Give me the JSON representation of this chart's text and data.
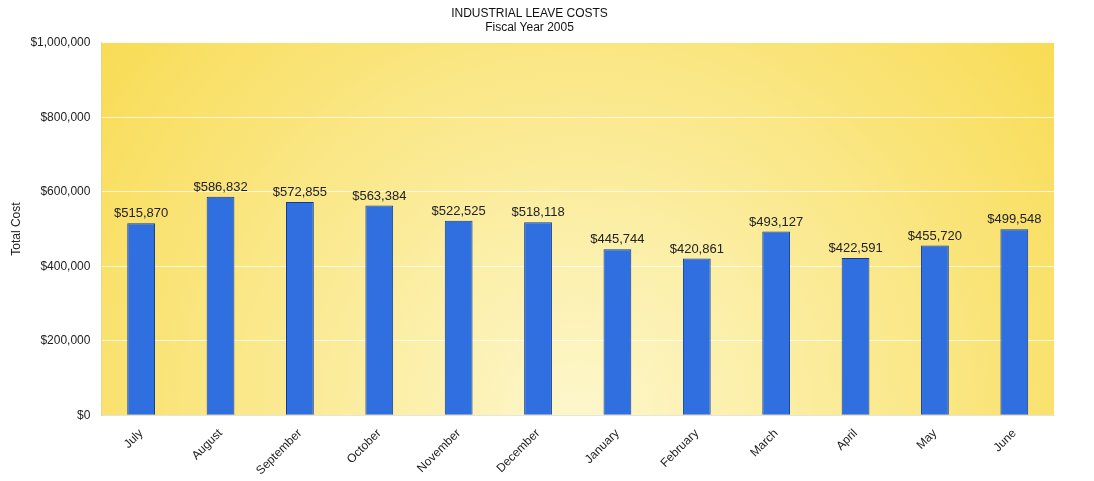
{
  "chart_data": {
    "type": "bar",
    "title": "INDUSTRIAL LEAVE COSTS",
    "subtitle": "Fiscal Year 2005",
    "ylabel": "Total Cost",
    "categories": [
      "July",
      "August",
      "September",
      "October",
      "November",
      "December",
      "January",
      "February",
      "March",
      "April",
      "May",
      "June"
    ],
    "values": [
      515870,
      586832,
      572855,
      563384,
      522525,
      518118,
      445744,
      420861,
      493127,
      422591,
      455720,
      499548
    ],
    "value_labels": [
      "$515,870",
      "$586,832",
      "$572,855",
      "$563,384",
      "$522,525",
      "$518,118",
      "$445,744",
      "$420,861",
      "$493,127",
      "$422,591",
      "$455,720",
      "$499,548"
    ],
    "color": "#2f6fe0",
    "ylim": [
      0,
      1000000
    ],
    "yticks": [
      {
        "value": 0,
        "label": "$0"
      },
      {
        "value": 200000,
        "label": "$200,000"
      },
      {
        "value": 400000,
        "label": "$400,000"
      },
      {
        "value": 600000,
        "label": "$600,000"
      },
      {
        "value": 800000,
        "label": "$800,000"
      },
      {
        "value": 1000000,
        "label": "$1,000,000"
      }
    ],
    "grid": "y",
    "legend": false
  }
}
